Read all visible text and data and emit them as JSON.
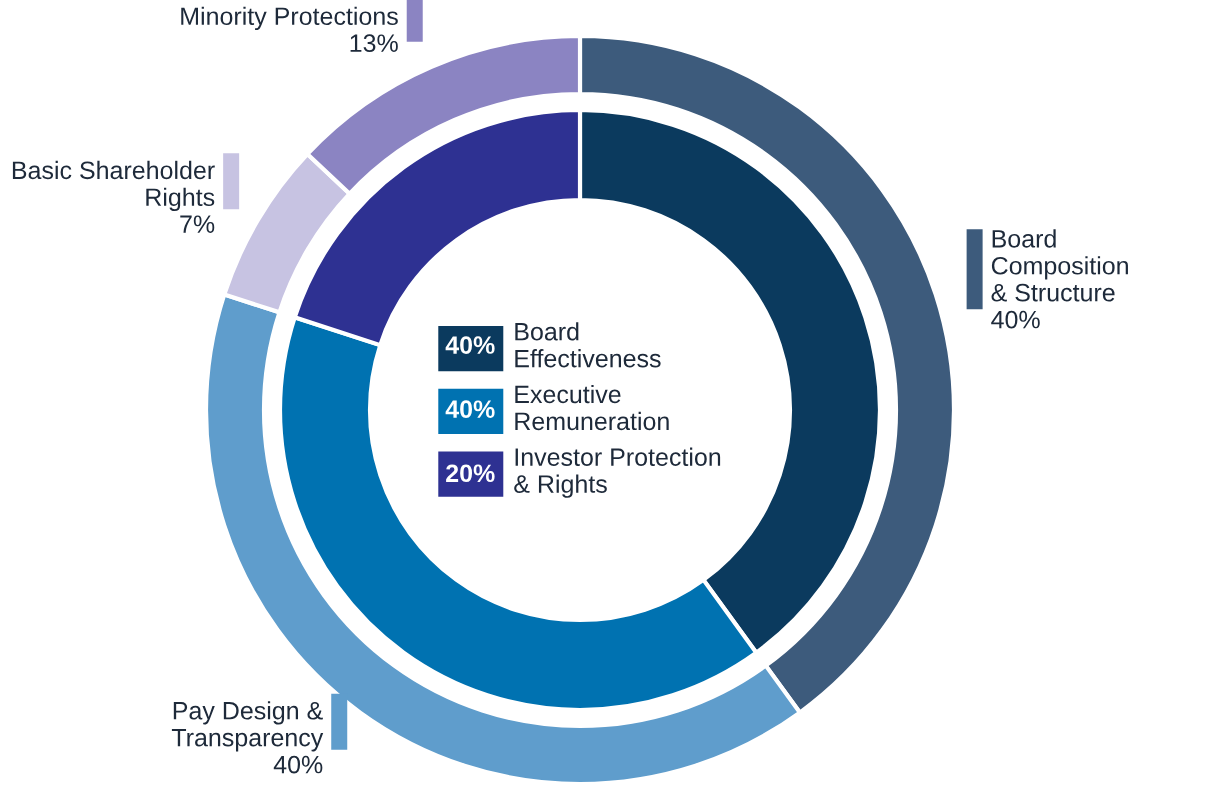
{
  "chart_data": {
    "type": "donut",
    "legend": "center",
    "categories": [
      "Board\nComposition\n& Structure",
      "Pay Design &\nTransparency",
      "Basic Shareholder\nRights",
      "Minority Protections",
      "Board\nEffectiveness",
      "Executive\nRemuneration",
      "Investor Protection\n& Rights"
    ],
    "colors": [
      "#3d5b7c",
      "#5f9dcc",
      "#c7c3e2",
      "#8b84c2",
      "#0b3a5e",
      "#0072b1",
      "#2e3192"
    ],
    "series": [
      {
        "values": [
          40,
          40,
          7,
          13,
          null,
          null,
          null
        ],
        "value_labels": [
          "40%",
          "40%",
          "7%",
          "13%",
          null,
          null,
          null
        ]
      },
      {
        "values": [
          null,
          null,
          null,
          null,
          40,
          40,
          20
        ],
        "value_labels": [
          null,
          null,
          null,
          null,
          "40%",
          "40%",
          "20%"
        ]
      }
    ]
  }
}
